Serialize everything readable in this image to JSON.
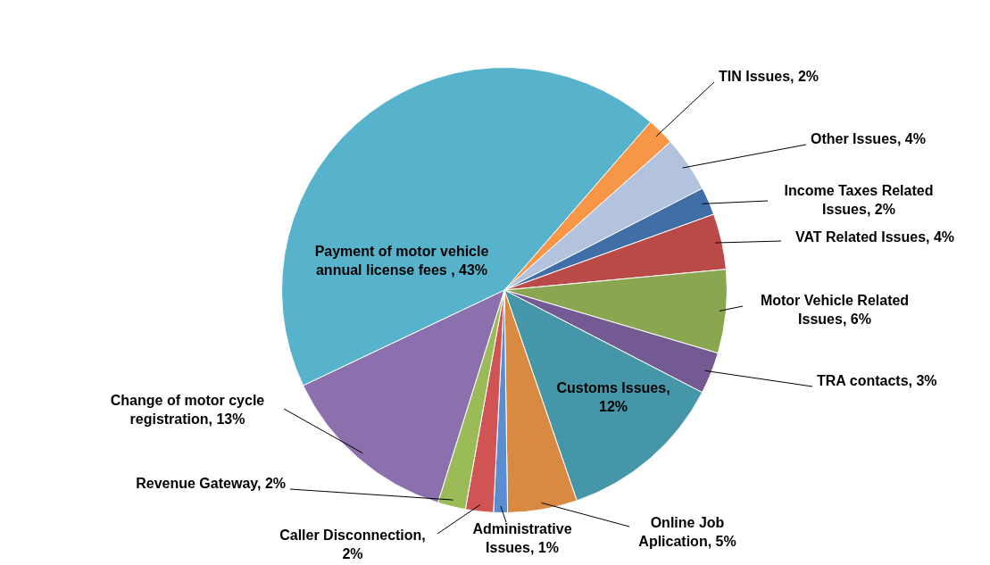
{
  "chart_data": {
    "type": "pie",
    "categories": [
      null,
      null,
      null,
      null,
      null,
      null,
      null,
      null,
      null,
      null,
      null,
      null,
      null
    ],
    "values": [
      2,
      4,
      2,
      4,
      6,
      3,
      12,
      5,
      1,
      2,
      2,
      13,
      43
    ],
    "colors": [
      "#f79646",
      "#b3c3de",
      "#3f6fa6",
      "#b94a47",
      "#8aa650",
      "#735a92",
      "#4596a8",
      "#d98a41",
      "#5b8ed0",
      "#d05454",
      "#9bbb59",
      "#8b70ad",
      "#57b3cc"
    ],
    "value_labels": [
      "TIN Issues, 2%",
      "Other Issues, 4%",
      "Income Taxes Related Issues, 2%",
      "VAT Related Issues, 4%",
      "Motor Vehicle Related Issues, 6%",
      "TRA contacts, 3%",
      "Customs Issues, 12%",
      "Online Job Aplication, 5%",
      "Administrative Issues, 1%",
      "Caller Disconnection, 2%",
      "Revenue Gateway, 2%",
      "Change of motor cycle registration, 13%",
      "Payment of motor vehicle annual license fees , 43%"
    ],
    "legend": false
  }
}
